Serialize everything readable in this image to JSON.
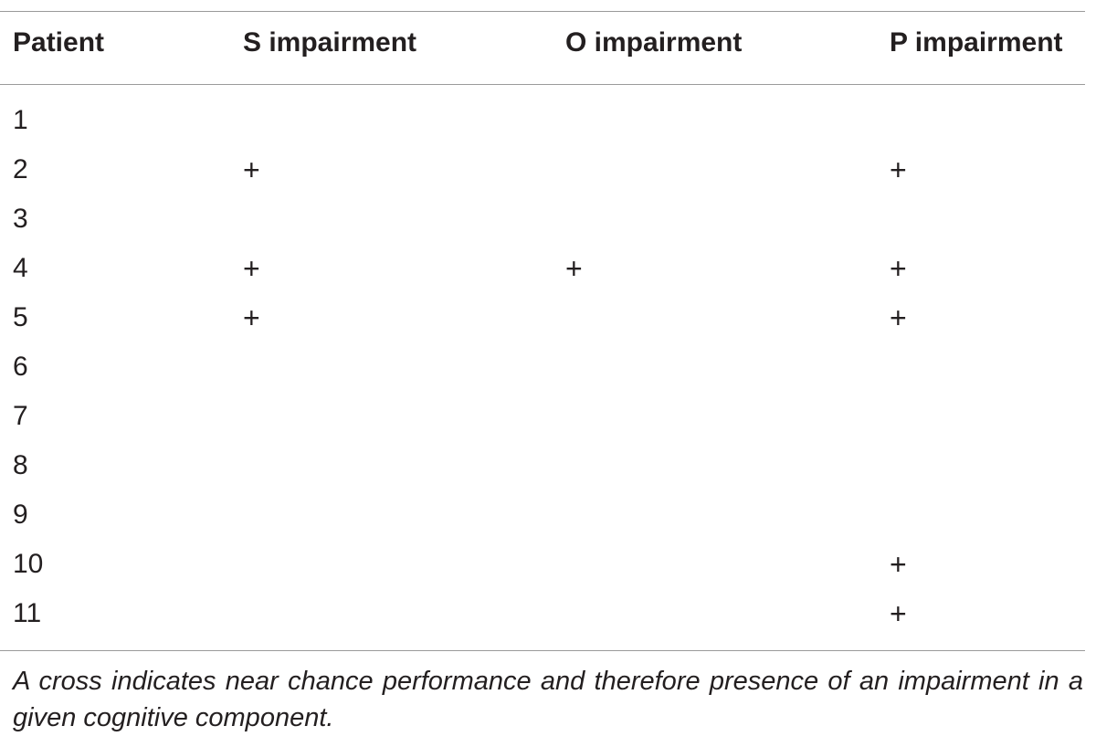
{
  "table": {
    "headers": {
      "patient": "Patient",
      "s": "S impairment",
      "o": "O impairment",
      "p": "P impairment"
    },
    "rows": [
      {
        "patient": "1",
        "s": "",
        "o": "",
        "p": ""
      },
      {
        "patient": "2",
        "s": "+",
        "o": "",
        "p": "+"
      },
      {
        "patient": "3",
        "s": "",
        "o": "",
        "p": ""
      },
      {
        "patient": "4",
        "s": "+",
        "o": "+",
        "p": "+"
      },
      {
        "patient": "5",
        "s": "+",
        "o": "",
        "p": "+"
      },
      {
        "patient": "6",
        "s": "",
        "o": "",
        "p": ""
      },
      {
        "patient": "7",
        "s": "",
        "o": "",
        "p": ""
      },
      {
        "patient": "8",
        "s": "",
        "o": "",
        "p": ""
      },
      {
        "patient": "9",
        "s": "",
        "o": "",
        "p": ""
      },
      {
        "patient": "10",
        "s": "",
        "o": "",
        "p": "+"
      },
      {
        "patient": "11",
        "s": "",
        "o": "",
        "p": "+"
      }
    ]
  },
  "caption": "A cross indicates near chance performance and therefore presence of an impairment in a given cognitive component."
}
